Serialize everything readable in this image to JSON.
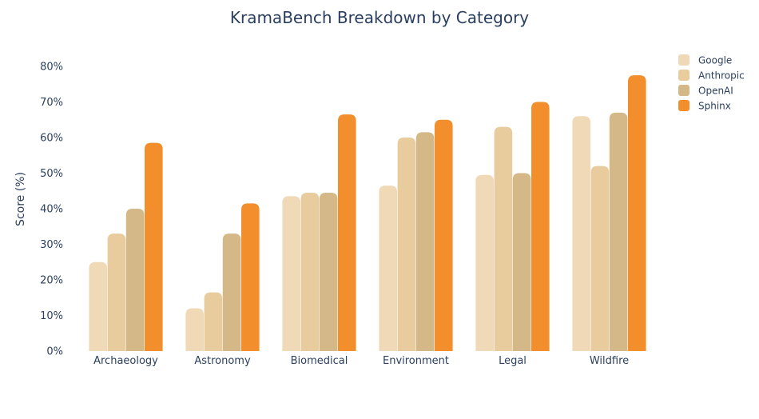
{
  "chart_data": {
    "type": "bar",
    "title": "KramaBench Breakdown by Category",
    "xlabel": "",
    "ylabel": "Score (%)",
    "ylim": [
      0,
      80
    ],
    "yticks": [
      0,
      10,
      20,
      30,
      40,
      50,
      60,
      70,
      80
    ],
    "ytick_suffix": "%",
    "grid": false,
    "legend_position": "top-right",
    "categories": [
      "Archaeology",
      "Astronomy",
      "Biomedical",
      "Environment",
      "Legal",
      "Wildfire"
    ],
    "series": [
      {
        "name": "Google",
        "color": "#efd9b6",
        "values": [
          25,
          12,
          43.5,
          46.5,
          49.5,
          66
        ]
      },
      {
        "name": "Anthropic",
        "color": "#e8cc9e",
        "values": [
          33,
          16.5,
          44.5,
          60,
          63,
          52
        ]
      },
      {
        "name": "OpenAI",
        "color": "#d5b887",
        "values": [
          40,
          33,
          44.5,
          61.5,
          50,
          67
        ]
      },
      {
        "name": "Sphinx",
        "color": "#f28e2b",
        "values": [
          58.5,
          41.5,
          66.5,
          65,
          70,
          77.5
        ]
      }
    ]
  },
  "colors": {
    "text": "#2a3f5f",
    "background": "#ffffff"
  }
}
